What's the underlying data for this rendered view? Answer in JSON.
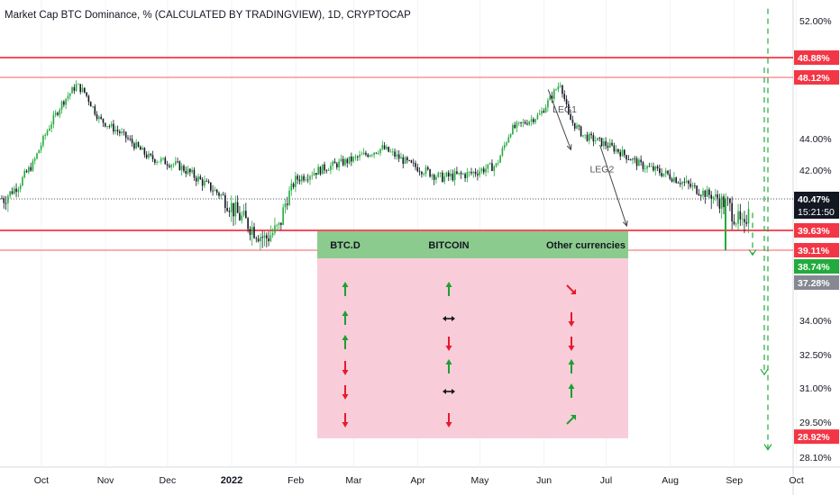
{
  "chart_title": "Market Cap BTC Dominance, % (CALCULATED BY TRADINGVIEW), 1D, CRYPTOCAP",
  "chart_data": {
    "type": "candlestick",
    "title": "Market Cap BTC Dominance, % (CALCULATED BY TRADINGVIEW), 1D, CRYPTOCAP",
    "y_unit": "%",
    "y_ticks": [
      "52.00%",
      "44.00%",
      "42.00%",
      "34.00%",
      "32.50%",
      "31.00%",
      "29.50%",
      "28.10%"
    ],
    "x_ticks": [
      "Oct",
      "Nov",
      "Dec",
      "2022",
      "Feb",
      "Mar",
      "Apr",
      "May",
      "Jun",
      "Jul",
      "Aug",
      "Sep",
      "Oct"
    ],
    "ylim": [
      28.1,
      52.0
    ],
    "series": [
      {
        "x": [
          "2021-09-13",
          "2021-09-20",
          "2021-09-27",
          "2021-10-04",
          "2021-10-11",
          "2021-10-18",
          "2021-10-22",
          "2021-10-29",
          "2021-11-08",
          "2021-11-22",
          "2021-12-06",
          "2021-12-20",
          "2022-01-03",
          "2022-01-17",
          "2022-01-24",
          "2022-02-01",
          "2022-02-14",
          "2022-03-01",
          "2022-03-15",
          "2022-03-29",
          "2022-04-12",
          "2022-04-26",
          "2022-05-09",
          "2022-05-16",
          "2022-05-30",
          "2022-06-09",
          "2022-06-13",
          "2022-06-20",
          "2022-06-28",
          "2022-07-06",
          "2022-07-18",
          "2022-08-01",
          "2022-08-15",
          "2022-08-29",
          "2022-09-06",
          "2022-09-08"
        ],
        "values": [
          40.5,
          41.2,
          42.4,
          44.6,
          46.4,
          47.6,
          47.1,
          45.3,
          44.4,
          42.8,
          42.3,
          41.2,
          40.1,
          39.4,
          39.7,
          41.5,
          42.1,
          42.7,
          43.4,
          42.3,
          41.6,
          41.8,
          42.3,
          44.6,
          45.6,
          47.8,
          45.4,
          44.2,
          43.8,
          43.3,
          42.3,
          41.7,
          40.9,
          40.3,
          39.6,
          40.47
        ]
      }
    ],
    "horizontal_levels": [
      {
        "label": "48.88%",
        "value": 48.88,
        "color": "#f23645"
      },
      {
        "label": "48.12%",
        "value": 48.12,
        "color": "#f23645"
      },
      {
        "label": "39.63%",
        "value": 39.63,
        "color": "#f23645"
      },
      {
        "label": "39.11%",
        "value": 39.11,
        "color": "#f23645"
      }
    ],
    "last_value": {
      "label": "40.47%",
      "countdown": "15:21:50"
    },
    "price_tags": [
      {
        "label": "38.74%",
        "color": "#22ab3c"
      },
      {
        "label": "37.28%",
        "color": "#868993"
      },
      {
        "label": "28.92%",
        "color": "#f23645"
      }
    ],
    "annotations": [
      {
        "text": "LEG1",
        "value": 46.0,
        "date": "2022-06-13"
      },
      {
        "text": "LEG2",
        "value": 42.1,
        "date": "2022-07-01"
      }
    ],
    "forecast_arrows": [
      {
        "style": "dashed",
        "color": "#22ab3c",
        "from_value": 53.0,
        "to_value": 28.4
      },
      {
        "style": "dashed",
        "color": "#22ab3c",
        "from_value": 48.5,
        "to_value": 31.6
      },
      {
        "style": "dashed",
        "color": "#22ab3c",
        "from_value": 40.1,
        "to_value": 39.0
      }
    ],
    "colors": {
      "up": "#22ab3c",
      "down": "#131722",
      "level": "#f23645"
    }
  },
  "scenario_table": {
    "headers": [
      "BTC.D",
      "BITCOIN",
      "Other currencies"
    ],
    "rows": [
      [
        "up",
        "up",
        "down-right"
      ],
      [
        "up",
        "flat",
        "down"
      ],
      [
        "up",
        "down",
        "down"
      ],
      [
        "down",
        "up",
        "up"
      ],
      [
        "down",
        "flat",
        "up"
      ],
      [
        "down",
        "down",
        "up-right"
      ]
    ],
    "colors": {
      "header": "#8ccb8e",
      "body": "#f8cdd9"
    }
  }
}
